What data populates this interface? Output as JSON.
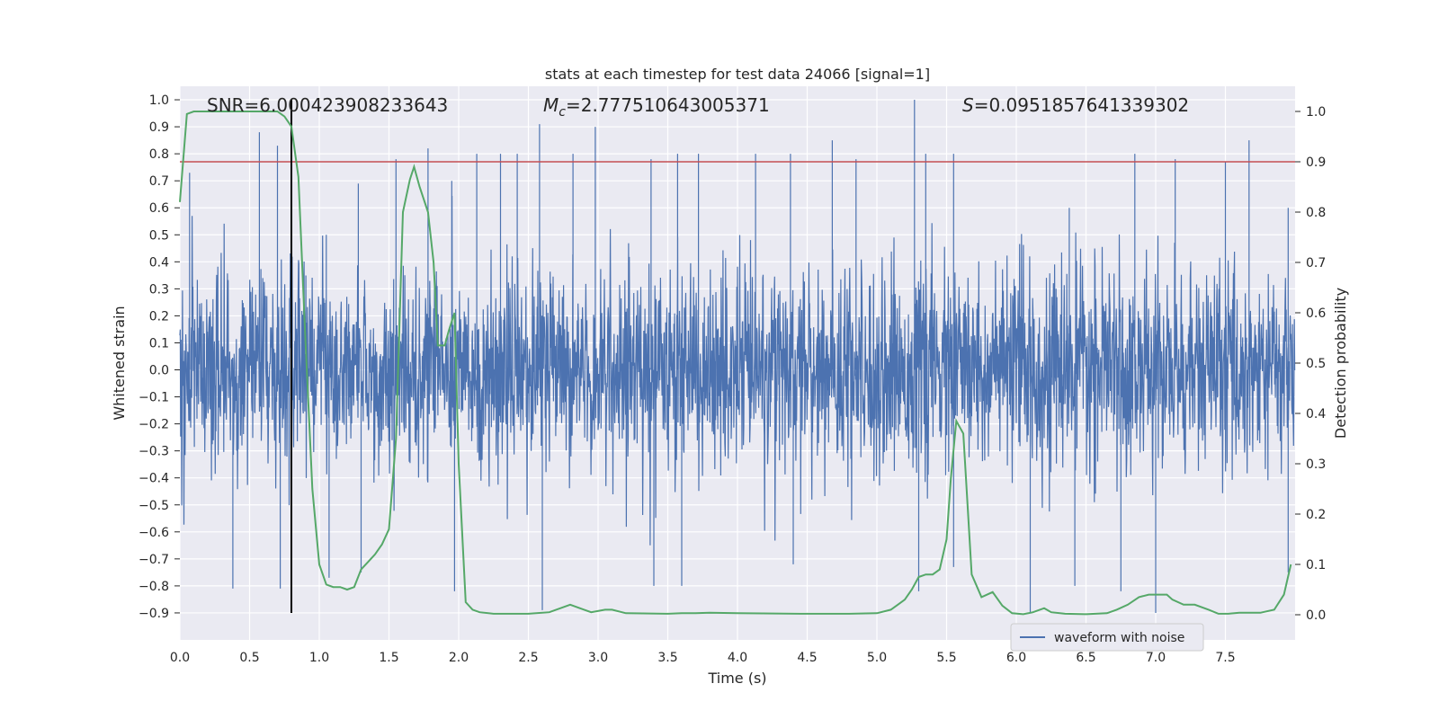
{
  "chart_data": {
    "type": "line",
    "title": "stats at each timestep for test data 24066 [signal=1]",
    "xlabel": "Time (s)",
    "ylabel": "Whitened strain",
    "y2label": "Detection probability",
    "xlim": [
      0.0,
      8.0
    ],
    "ylim": [
      -1.0,
      1.05
    ],
    "y2lim": [
      -0.05,
      1.05
    ],
    "x_ticks": [
      0.0,
      0.5,
      1.0,
      1.5,
      2.0,
      2.5,
      3.0,
      3.5,
      4.0,
      4.5,
      5.0,
      5.5,
      6.0,
      6.5,
      7.0,
      7.5
    ],
    "y_ticks": [
      -0.9,
      -0.8,
      -0.7,
      -0.6,
      -0.5,
      -0.4,
      -0.3,
      -0.2,
      -0.1,
      0.0,
      0.1,
      0.2,
      0.3,
      0.4,
      0.5,
      0.6,
      0.7,
      0.8,
      0.9,
      1.0
    ],
    "y2_ticks": [
      0.0,
      0.1,
      0.2,
      0.3,
      0.4,
      0.5,
      0.6,
      0.7,
      0.8,
      0.9,
      1.0
    ],
    "annotations": {
      "snr": "SNR=6.000423908233643",
      "mc_symbol": "M",
      "mc_sub": "c",
      "mc_value": "=2.777510643005371",
      "s_symbol": "S",
      "s_value": "=0.0951857641339302"
    },
    "legend": {
      "label": "waveform with noise",
      "placement": "lower-right"
    },
    "vertical_marker_x": 0.8,
    "vertical_marker_range": [
      -0.9,
      1.0
    ],
    "threshold_probability": 0.9,
    "colors": {
      "waveform": "#4c72b0",
      "probability": "#55a868",
      "threshold": "#c44e52",
      "marker": "#000000",
      "plot_bg": "#eaeaf2",
      "grid": "#ffffff"
    },
    "series": [
      {
        "name": "waveform with noise",
        "noise_sigma": 0.18,
        "peaks": [
          [
            0.07,
            0.73
          ],
          [
            0.57,
            0.88
          ],
          [
            0.7,
            0.83
          ],
          [
            1.05,
            0.5
          ],
          [
            1.28,
            0.69
          ],
          [
            1.55,
            0.78
          ],
          [
            1.78,
            0.82
          ],
          [
            1.95,
            0.7
          ],
          [
            2.13,
            0.8
          ],
          [
            2.3,
            0.8
          ],
          [
            2.42,
            0.8
          ],
          [
            2.58,
            0.91
          ],
          [
            2.82,
            0.8
          ],
          [
            2.98,
            0.9
          ],
          [
            3.38,
            0.78
          ],
          [
            3.57,
            0.8
          ],
          [
            3.72,
            0.8
          ],
          [
            4.13,
            0.8
          ],
          [
            4.38,
            0.8
          ],
          [
            4.68,
            0.85
          ],
          [
            4.85,
            0.78
          ],
          [
            5.27,
            1.0
          ],
          [
            5.35,
            0.8
          ],
          [
            5.55,
            0.8
          ],
          [
            6.38,
            0.6
          ],
          [
            6.85,
            0.8
          ],
          [
            7.14,
            0.78
          ],
          [
            7.5,
            0.77
          ],
          [
            7.67,
            0.85
          ],
          [
            7.95,
            0.6
          ],
          [
            0.38,
            -0.81
          ],
          [
            0.72,
            -0.81
          ],
          [
            1.07,
            -0.77
          ],
          [
            1.3,
            -0.75
          ],
          [
            1.97,
            -0.82
          ],
          [
            2.6,
            -0.89
          ],
          [
            3.4,
            -0.8
          ],
          [
            3.6,
            -0.8
          ],
          [
            4.4,
            -0.72
          ],
          [
            5.3,
            -0.82
          ],
          [
            5.55,
            -0.73
          ],
          [
            6.1,
            -0.9
          ],
          [
            6.42,
            -0.8
          ],
          [
            6.75,
            -0.82
          ],
          [
            7.0,
            -0.9
          ],
          [
            7.95,
            -0.75
          ]
        ]
      },
      {
        "name": "Detection probability",
        "x": [
          0.0,
          0.05,
          0.1,
          0.2,
          0.3,
          0.4,
          0.5,
          0.6,
          0.7,
          0.75,
          0.8,
          0.85,
          0.9,
          0.95,
          1.0,
          1.05,
          1.1,
          1.15,
          1.2,
          1.25,
          1.3,
          1.35,
          1.4,
          1.45,
          1.5,
          1.55,
          1.6,
          1.65,
          1.68,
          1.72,
          1.78,
          1.82,
          1.85,
          1.9,
          1.93,
          1.97,
          2.0,
          2.05,
          2.1,
          2.15,
          2.25,
          2.5,
          2.65,
          2.8,
          2.9,
          2.95,
          3.05,
          3.1,
          3.2,
          3.5,
          3.6,
          3.7,
          3.8,
          4.0,
          4.5,
          4.8,
          5.0,
          5.1,
          5.15,
          5.2,
          5.25,
          5.3,
          5.35,
          5.4,
          5.45,
          5.5,
          5.53,
          5.57,
          5.62,
          5.68,
          5.75,
          5.83,
          5.9,
          5.97,
          6.05,
          6.12,
          6.2,
          6.25,
          6.35,
          6.5,
          6.65,
          6.72,
          6.8,
          6.88,
          6.95,
          7.02,
          7.08,
          7.12,
          7.2,
          7.28,
          7.38,
          7.45,
          7.52,
          7.6,
          7.75,
          7.85,
          7.92,
          7.97
        ],
        "values": [
          0.82,
          0.995,
          1.0,
          1.0,
          1.0,
          1.0,
          1.0,
          1.0,
          1.0,
          0.99,
          0.97,
          0.87,
          0.55,
          0.25,
          0.1,
          0.06,
          0.055,
          0.055,
          0.05,
          0.055,
          0.09,
          0.105,
          0.12,
          0.14,
          0.17,
          0.35,
          0.8,
          0.865,
          0.89,
          0.85,
          0.8,
          0.7,
          0.535,
          0.535,
          0.565,
          0.6,
          0.3,
          0.025,
          0.01,
          0.005,
          0.002,
          0.002,
          0.005,
          0.02,
          0.01,
          0.005,
          0.01,
          0.01,
          0.003,
          0.002,
          0.003,
          0.003,
          0.004,
          0.003,
          0.002,
          0.002,
          0.003,
          0.01,
          0.02,
          0.03,
          0.05,
          0.075,
          0.08,
          0.08,
          0.09,
          0.15,
          0.27,
          0.385,
          0.36,
          0.08,
          0.035,
          0.045,
          0.018,
          0.003,
          0.001,
          0.005,
          0.013,
          0.005,
          0.002,
          0.001,
          0.003,
          0.01,
          0.02,
          0.035,
          0.04,
          0.04,
          0.04,
          0.03,
          0.02,
          0.02,
          0.01,
          0.002,
          0.002,
          0.004,
          0.004,
          0.01,
          0.04,
          0.1
        ]
      }
    ]
  }
}
